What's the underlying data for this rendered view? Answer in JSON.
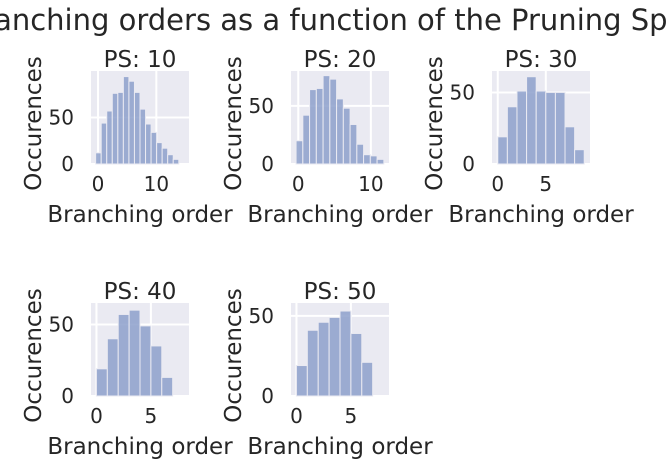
{
  "figure": {
    "title": "Branching orders as a function of the Pruning Span"
  },
  "chart_data": [
    {
      "type": "bar",
      "title": "PS: 10",
      "xlabel": "Branching order",
      "ylabel": "Occurences",
      "bin_start": -0.4,
      "bin_width": 0.95,
      "values": [
        12,
        44,
        57,
        76,
        77,
        94,
        89,
        77,
        59,
        43,
        34,
        23,
        17,
        10,
        5
      ],
      "xlim": [
        -1.2,
        15.6
      ],
      "ylim": [
        0,
        100
      ],
      "xticks": [
        0,
        10
      ],
      "yticks": [
        0,
        50
      ],
      "grid": true
    },
    {
      "type": "bar",
      "title": "PS: 20",
      "xlabel": "Branching order",
      "ylabel": "Occurences",
      "bin_start": -0.3,
      "bin_width": 0.93,
      "values": [
        20,
        42,
        64,
        65,
        76,
        73,
        56,
        48,
        34,
        17,
        8,
        7,
        4
      ],
      "xlim": [
        -1.0,
        12.5
      ],
      "ylim": [
        0,
        80
      ],
      "xticks": [
        0,
        10
      ],
      "yticks": [
        0,
        50
      ],
      "grid": true
    },
    {
      "type": "bar",
      "title": "PS: 30",
      "xlabel": "Branching order",
      "ylabel": "Occurences",
      "bin_start": 0,
      "bin_width": 1,
      "values": [
        19,
        40,
        51,
        61,
        51,
        50,
        50,
        26,
        10
      ],
      "xlim": [
        -0.6,
        9.6
      ],
      "ylim": [
        0,
        65
      ],
      "xticks": [
        0,
        5
      ],
      "yticks": [
        0,
        50
      ],
      "grid": true
    },
    {
      "type": "bar",
      "title": "PS: 40",
      "xlabel": "Branching order",
      "ylabel": "Occurences",
      "bin_start": 0,
      "bin_width": 1,
      "values": [
        19,
        40,
        57,
        60,
        49,
        35,
        13
      ],
      "xlim": [
        -0.5,
        8.5
      ],
      "ylim": [
        0,
        65
      ],
      "xticks": [
        0,
        5
      ],
      "yticks": [
        0,
        50
      ],
      "grid": true
    },
    {
      "type": "bar",
      "title": "PS: 50",
      "xlabel": "Branching order",
      "ylabel": "Occurences",
      "bin_start": 0,
      "bin_width": 1,
      "values": [
        19,
        41,
        46,
        49,
        53,
        39,
        21
      ],
      "xlim": [
        -0.5,
        8.5
      ],
      "ylim": [
        0,
        58
      ],
      "xticks": [
        0,
        5
      ],
      "yticks": [
        0,
        50
      ],
      "grid": true
    }
  ],
  "colors": {
    "axes_bg": "#eaeaf2",
    "bar": "#8da0cb",
    "grid": "#ffffff",
    "text": "#262626"
  }
}
